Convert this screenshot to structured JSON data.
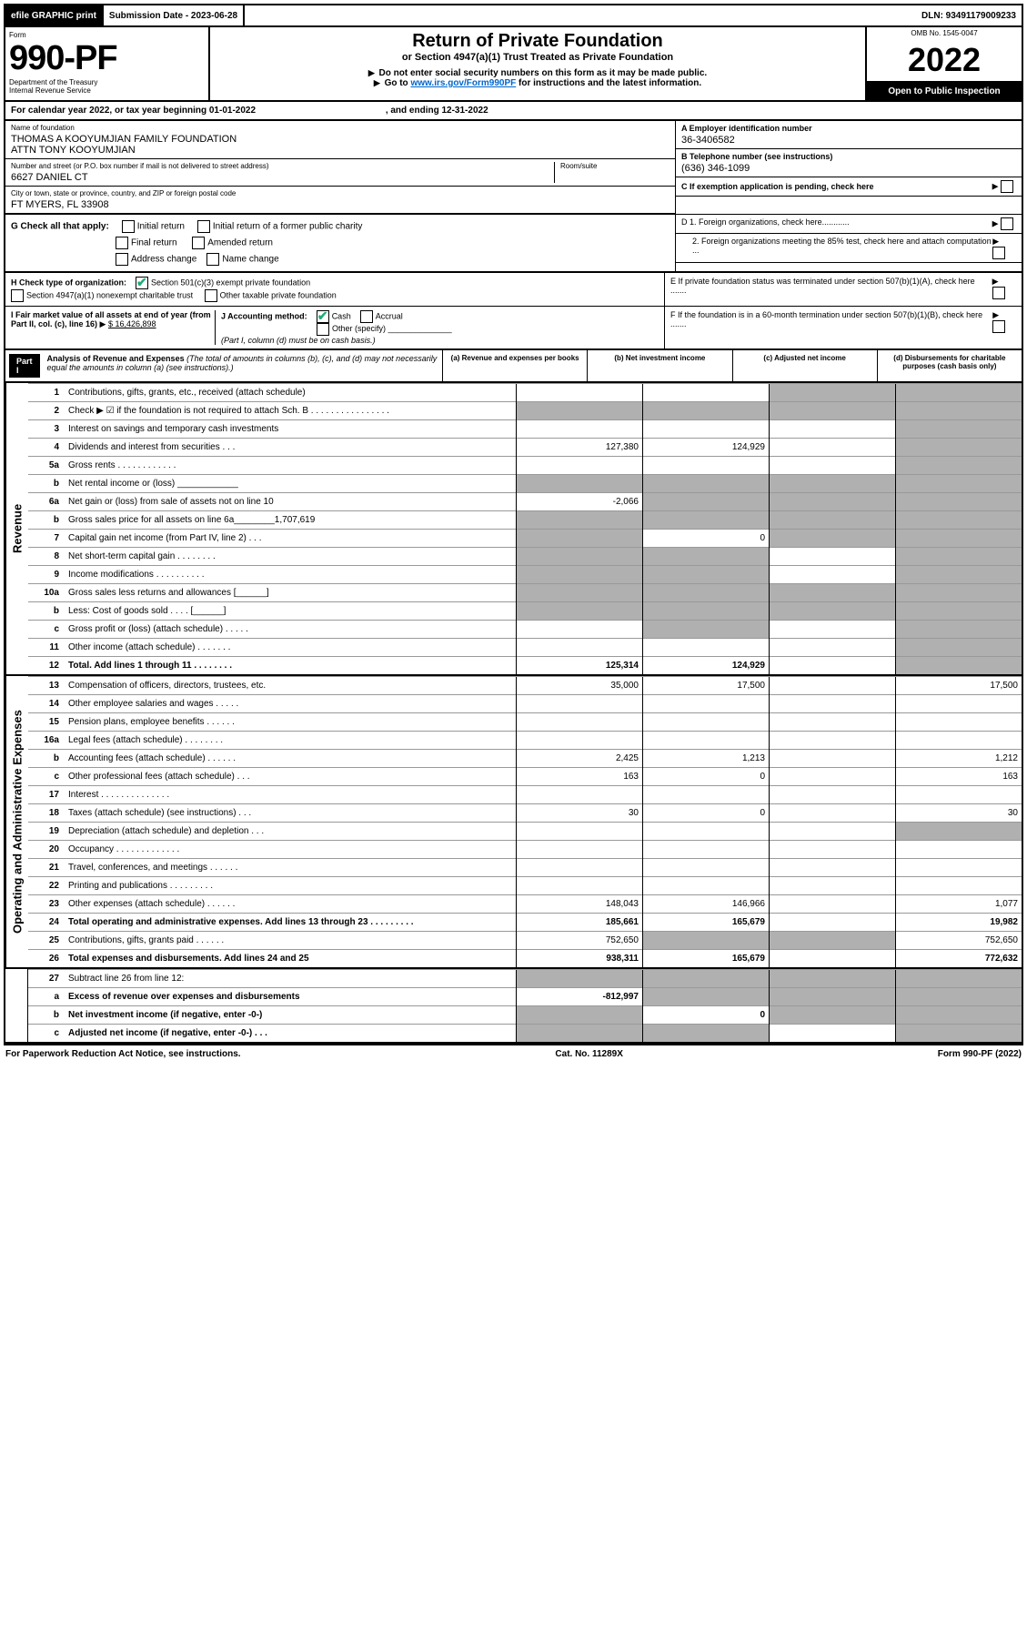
{
  "topbar": {
    "efile": "efile GRAPHIC print",
    "submission_label": "Submission Date - 2023-06-28",
    "dln": "DLN: 93491179009233"
  },
  "header": {
    "form_label": "Form",
    "form_number": "990-PF",
    "dept": "Department of the Treasury",
    "irs": "Internal Revenue Service",
    "title": "Return of Private Foundation",
    "subtitle": "or Section 4947(a)(1) Trust Treated as Private Foundation",
    "note1": "Do not enter social security numbers on this form as it may be made public.",
    "note2": "Go to ",
    "link": "www.irs.gov/Form990PF",
    "note2b": " for instructions and the latest information.",
    "omb": "OMB No. 1545-0047",
    "year": "2022",
    "open": "Open to Public Inspection"
  },
  "calyear": {
    "text": "For calendar year 2022, or tax year beginning 01-01-2022",
    "end": ", and ending 12-31-2022"
  },
  "info": {
    "name_label": "Name of foundation",
    "name": "THOMAS A KOOYUMJIAN FAMILY FOUNDATION\nATTN TONY KOOYUMJIAN",
    "addr_label": "Number and street (or P.O. box number if mail is not delivered to street address)",
    "addr": "6627 DANIEL CT",
    "room_label": "Room/suite",
    "city_label": "City or town, state or province, country, and ZIP or foreign postal code",
    "city": "FT MYERS, FL  33908",
    "a_label": "A Employer identification number",
    "a_val": "36-3406582",
    "b_label": "B Telephone number (see instructions)",
    "b_val": "(636) 346-1099",
    "c_label": "C If exemption application is pending, check here"
  },
  "checks": {
    "g_label": "G Check all that apply:",
    "g1": "Initial return",
    "g2": "Final return",
    "g3": "Address change",
    "g4": "Initial return of a former public charity",
    "g5": "Amended return",
    "g6": "Name change",
    "h_label": "H Check type of organization:",
    "h1": "Section 501(c)(3) exempt private foundation",
    "h2": "Section 4947(a)(1) nonexempt charitable trust",
    "h3": "Other taxable private foundation",
    "i_label": "I Fair market value of all assets at end of year (from Part II, col. (c), line 16)",
    "i_val": "$  16,426,898",
    "j_label": "J Accounting method:",
    "j1": "Cash",
    "j2": "Accrual",
    "j3": "Other (specify)",
    "j_note": "(Part I, column (d) must be on cash basis.)",
    "d1": "D 1. Foreign organizations, check here............",
    "d2": "2. Foreign organizations meeting the 85% test, check here and attach computation ...",
    "e": "E  If private foundation status was terminated under section 507(b)(1)(A), check here .......",
    "f": "F  If the foundation is in a 60-month termination under section 507(b)(1)(B), check here .......",
    "arrow": "▶"
  },
  "part1": {
    "label": "Part I",
    "title": "Analysis of Revenue and Expenses",
    "note": " (The total of amounts in columns (b), (c), and (d) may not necessarily equal the amounts in column (a) (see instructions).)",
    "col_a": "(a)   Revenue and expenses per books",
    "col_b": "(b)   Net investment income",
    "col_c": "(c)  Adjusted net income",
    "col_d": "(d)   Disbursements for charitable purposes (cash basis only)"
  },
  "sections": {
    "revenue": "Revenue",
    "expenses": "Operating and Administrative Expenses"
  },
  "rows": [
    {
      "n": "1",
      "d": "Contributions, gifts, grants, etc., received (attach schedule)",
      "a": "",
      "b": "",
      "c": "grey",
      "dd": "grey"
    },
    {
      "n": "2",
      "d": "Check ▶ ☑ if the foundation is not required to attach Sch. B  .  .  .  .  .  .  .  .  .  .  .  .  .  .  .  .",
      "a": "grey",
      "b": "grey",
      "c": "grey",
      "dd": "grey"
    },
    {
      "n": "3",
      "d": "Interest on savings and temporary cash investments",
      "a": "",
      "b": "",
      "c": "",
      "dd": "grey"
    },
    {
      "n": "4",
      "d": "Dividends and interest from securities   .   .   .",
      "a": "127,380",
      "b": "124,929",
      "c": "",
      "dd": "grey"
    },
    {
      "n": "5a",
      "d": "Gross rents   .   .   .   .   .   .   .   .   .   .   .   .",
      "a": "",
      "b": "",
      "c": "",
      "dd": "grey"
    },
    {
      "n": "b",
      "d": "Net rental income or (loss)  ____________",
      "a": "grey",
      "b": "grey",
      "c": "grey",
      "dd": "grey"
    },
    {
      "n": "6a",
      "d": "Net gain or (loss) from sale of assets not on line 10",
      "a": "-2,066",
      "b": "grey",
      "c": "grey",
      "dd": "grey"
    },
    {
      "n": "b",
      "d": "Gross sales price for all assets on line 6a________1,707,619",
      "a": "grey",
      "b": "grey",
      "c": "grey",
      "dd": "grey"
    },
    {
      "n": "7",
      "d": "Capital gain net income (from Part IV, line 2)   .   .   .",
      "a": "grey",
      "b": "0",
      "c": "grey",
      "dd": "grey"
    },
    {
      "n": "8",
      "d": "Net short-term capital gain  .   .   .   .   .   .   .   .",
      "a": "grey",
      "b": "grey",
      "c": "",
      "dd": "grey"
    },
    {
      "n": "9",
      "d": "Income modifications  .   .   .   .   .   .   .   .   .   .",
      "a": "grey",
      "b": "grey",
      "c": "",
      "dd": "grey"
    },
    {
      "n": "10a",
      "d": "Gross sales less returns and allowances  [______]",
      "a": "grey",
      "b": "grey",
      "c": "grey",
      "dd": "grey"
    },
    {
      "n": "b",
      "d": "Less: Cost of goods sold   .   .   .   .   [______]",
      "a": "grey",
      "b": "grey",
      "c": "grey",
      "dd": "grey"
    },
    {
      "n": "c",
      "d": "Gross profit or (loss) (attach schedule)   .   .   .   .   .",
      "a": "",
      "b": "grey",
      "c": "",
      "dd": "grey"
    },
    {
      "n": "11",
      "d": "Other income (attach schedule)   .   .   .   .   .   .   .",
      "a": "",
      "b": "",
      "c": "",
      "dd": "grey"
    },
    {
      "n": "12",
      "d": "Total. Add lines 1 through 11   .   .   .   .   .   .   .   .",
      "a": "125,314",
      "b": "124,929",
      "c": "",
      "dd": "grey",
      "bold": true
    }
  ],
  "exp_rows": [
    {
      "n": "13",
      "d": "Compensation of officers, directors, trustees, etc.",
      "a": "35,000",
      "b": "17,500",
      "c": "",
      "dd": "17,500"
    },
    {
      "n": "14",
      "d": "Other employee salaries and wages   .   .   .   .   .",
      "a": "",
      "b": "",
      "c": "",
      "dd": ""
    },
    {
      "n": "15",
      "d": "Pension plans, employee benefits  .   .   .   .   .   .",
      "a": "",
      "b": "",
      "c": "",
      "dd": ""
    },
    {
      "n": "16a",
      "d": "Legal fees (attach schedule)  .   .   .   .   .   .   .   .",
      "a": "",
      "b": "",
      "c": "",
      "dd": ""
    },
    {
      "n": "b",
      "d": "Accounting fees (attach schedule)  .   .   .   .   .   .",
      "a": "2,425",
      "b": "1,213",
      "c": "",
      "dd": "1,212"
    },
    {
      "n": "c",
      "d": "Other professional fees (attach schedule)   .   .   .",
      "a": "163",
      "b": "0",
      "c": "",
      "dd": "163"
    },
    {
      "n": "17",
      "d": "Interest  .   .   .   .   .   .   .   .   .   .   .   .   .   .",
      "a": "",
      "b": "",
      "c": "",
      "dd": ""
    },
    {
      "n": "18",
      "d": "Taxes (attach schedule) (see instructions)   .   .   .",
      "a": "30",
      "b": "0",
      "c": "",
      "dd": "30"
    },
    {
      "n": "19",
      "d": "Depreciation (attach schedule) and depletion   .   .   .",
      "a": "",
      "b": "",
      "c": "",
      "dd": "grey"
    },
    {
      "n": "20",
      "d": "Occupancy  .   .   .   .   .   .   .   .   .   .   .   .   .",
      "a": "",
      "b": "",
      "c": "",
      "dd": ""
    },
    {
      "n": "21",
      "d": "Travel, conferences, and meetings  .   .   .   .   .   .",
      "a": "",
      "b": "",
      "c": "",
      "dd": ""
    },
    {
      "n": "22",
      "d": "Printing and publications  .   .   .   .   .   .   .   .   .",
      "a": "",
      "b": "",
      "c": "",
      "dd": ""
    },
    {
      "n": "23",
      "d": "Other expenses (attach schedule)  .   .   .   .   .   .",
      "a": "148,043",
      "b": "146,966",
      "c": "",
      "dd": "1,077"
    },
    {
      "n": "24",
      "d": "Total operating and administrative expenses. Add lines 13 through 23   .   .   .   .   .   .   .   .   .",
      "a": "185,661",
      "b": "165,679",
      "c": "",
      "dd": "19,982",
      "bold": true
    },
    {
      "n": "25",
      "d": "Contributions, gifts, grants paid    .   .   .   .   .   .",
      "a": "752,650",
      "b": "grey",
      "c": "grey",
      "dd": "752,650"
    },
    {
      "n": "26",
      "d": "Total expenses and disbursements. Add lines 24 and 25",
      "a": "938,311",
      "b": "165,679",
      "c": "",
      "dd": "772,632",
      "bold": true
    }
  ],
  "net_rows": [
    {
      "n": "27",
      "d": "Subtract line 26 from line 12:",
      "a": "grey",
      "b": "grey",
      "c": "grey",
      "dd": "grey"
    },
    {
      "n": "a",
      "d": "Excess of revenue over expenses and disbursements",
      "a": "-812,997",
      "b": "grey",
      "c": "grey",
      "dd": "grey",
      "bold": true
    },
    {
      "n": "b",
      "d": "Net investment income (if negative, enter -0-)",
      "a": "grey",
      "b": "0",
      "c": "grey",
      "dd": "grey",
      "bold": true
    },
    {
      "n": "c",
      "d": "Adjusted net income (if negative, enter -0-)   .   .   .",
      "a": "grey",
      "b": "grey",
      "c": "",
      "dd": "grey",
      "bold": true
    }
  ],
  "footer": {
    "left": "For Paperwork Reduction Act Notice, see instructions.",
    "center": "Cat. No. 11289X",
    "right": "Form 990-PF (2022)"
  }
}
